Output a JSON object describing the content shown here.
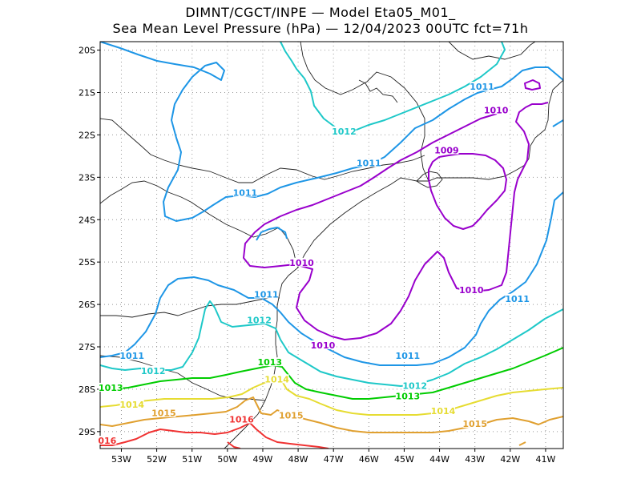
{
  "title": {
    "line1": "DIMNT/CGCT/INPE —  Model Eta05_M01_",
    "line2": "Sea Mean Level Pressure (hPa) — 12/04/2023 00UTC fct=71h"
  },
  "axes": {
    "lat_labels": [
      "20S",
      "21S",
      "22S",
      "23S",
      "24S",
      "25S",
      "26S",
      "27S",
      "28S",
      "29S"
    ],
    "lon_labels": [
      "53W",
      "52W",
      "51W",
      "50W",
      "49W",
      "48W",
      "47W",
      "46W",
      "45W",
      "44W",
      "43W",
      "42W",
      "41W"
    ]
  },
  "colors": {
    "c1009": "#9900cc",
    "c1010": "#9900cc",
    "c1011": "#1e96e6",
    "c1012": "#1ec8c8",
    "c1013": "#00cc00",
    "c1014": "#e6dc32",
    "c1015": "#e0a030",
    "c1016": "#f03232"
  },
  "chart_data": {
    "type": "contour-map",
    "variable": "Sea Mean Level Pressure (hPa)",
    "lon_range": [
      -53.6,
      -40.5
    ],
    "lat_range": [
      -29.4,
      -19.8
    ],
    "contour_levels": [
      1009,
      1010,
      1011,
      1012,
      1013,
      1014,
      1015,
      1016
    ],
    "grid": true,
    "contour_labels": [
      {
        "level": "1009",
        "lon": -43.8,
        "lat": -22.4
      },
      {
        "level": "1010",
        "lon": -42.4,
        "lat": -21.45
      },
      {
        "level": "1010",
        "lon": -47.9,
        "lat": -25.05
      },
      {
        "level": "1010",
        "lon": -47.3,
        "lat": -27.0
      },
      {
        "level": "1010",
        "lon": -43.1,
        "lat": -25.7
      },
      {
        "level": "1011",
        "lon": -42.8,
        "lat": -20.9
      },
      {
        "level": "1011",
        "lon": -46.0,
        "lat": -22.7
      },
      {
        "level": "1011",
        "lon": -49.5,
        "lat": -23.4
      },
      {
        "level": "1011",
        "lon": -48.9,
        "lat": -25.8
      },
      {
        "level": "1011",
        "lon": -52.7,
        "lat": -27.25
      },
      {
        "level": "1011",
        "lon": -44.9,
        "lat": -27.25
      },
      {
        "level": "1011",
        "lon": -41.8,
        "lat": -25.9
      },
      {
        "level": "1012",
        "lon": -46.7,
        "lat": -21.95
      },
      {
        "level": "1012",
        "lon": -49.1,
        "lat": -26.4
      },
      {
        "level": "1012",
        "lon": -52.1,
        "lat": -27.6
      },
      {
        "level": "1012",
        "lon": -44.7,
        "lat": -27.95
      },
      {
        "level": "1013",
        "lon": -48.8,
        "lat": -27.4
      },
      {
        "level": "1013",
        "lon": -53.3,
        "lat": -28.0
      },
      {
        "level": "1013",
        "lon": -44.9,
        "lat": -28.2
      },
      {
        "level": "1014",
        "lon": -48.6,
        "lat": -27.8
      },
      {
        "level": "1014",
        "lon": -52.7,
        "lat": -28.4
      },
      {
        "level": "1014",
        "lon": -43.9,
        "lat": -28.55
      },
      {
        "level": "1015",
        "lon": -51.8,
        "lat": -28.6
      },
      {
        "level": "1015",
        "lon": -48.2,
        "lat": -28.65
      },
      {
        "level": "1015",
        "lon": -43.0,
        "lat": -28.85
      },
      {
        "level": "1016",
        "lon": -49.6,
        "lat": -28.75
      },
      {
        "level": "016",
        "lon": -53.4,
        "lat": -29.25
      }
    ]
  }
}
